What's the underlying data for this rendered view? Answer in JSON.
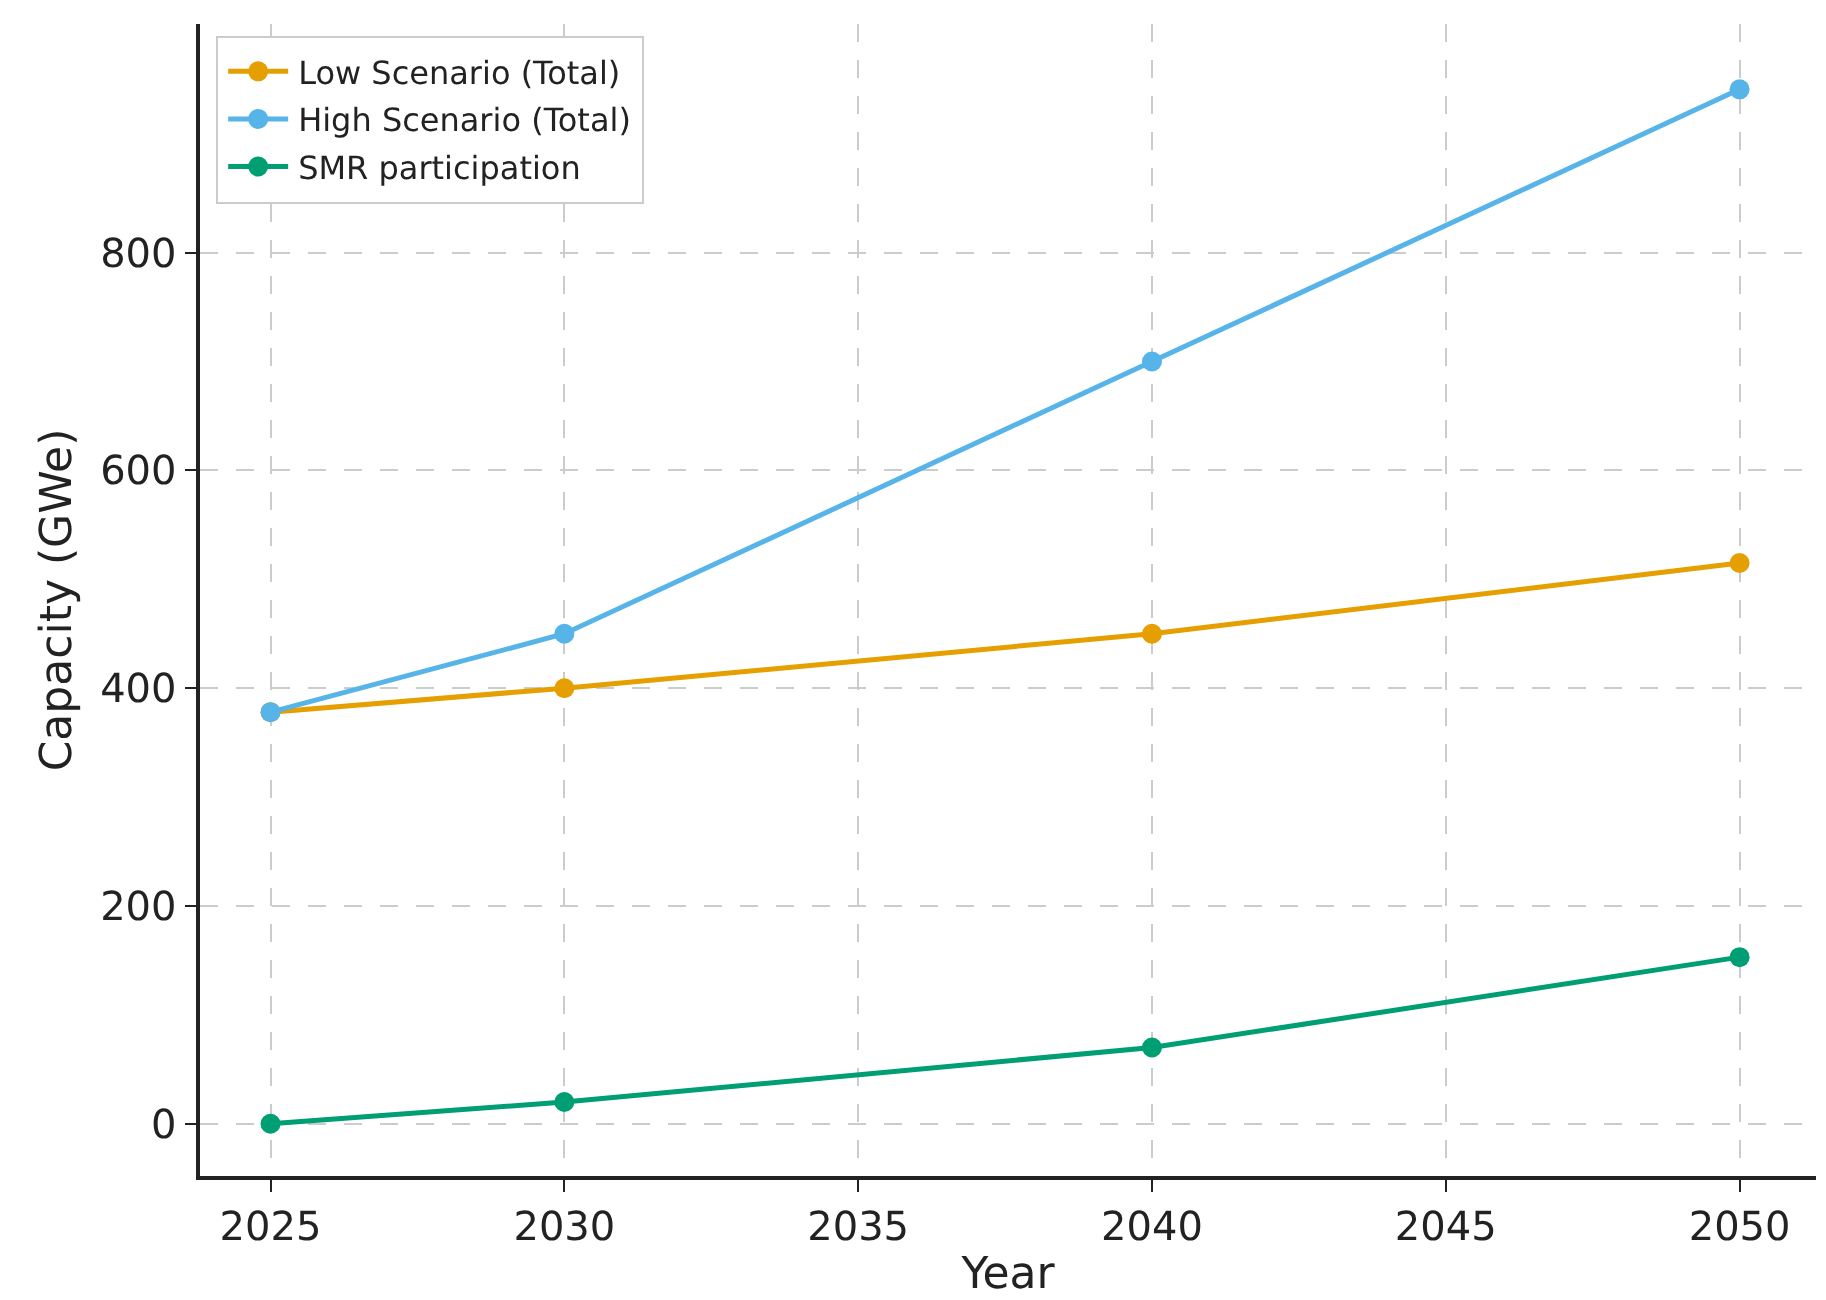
{
  "chart_data": {
    "type": "line",
    "xlabel": "Year",
    "ylabel": "Capacity (GWe)",
    "x": [
      2025,
      2030,
      2040,
      2050
    ],
    "series": [
      {
        "name": "Low Scenario (Total)",
        "color": "#e69f00",
        "values": [
          378,
          400,
          450,
          515
        ]
      },
      {
        "name": "High Scenario (Total)",
        "color": "#56b4e9",
        "values": [
          378,
          450,
          700,
          950
        ]
      },
      {
        "name": "SMR participation",
        "color": "#009e73",
        "values": [
          0,
          20,
          70,
          153
        ]
      }
    ],
    "xlim": [
      2023.8,
      2051.3
    ],
    "xticks": [
      2025,
      2030,
      2035,
      2040,
      2045,
      2050
    ],
    "ylim": [
      -48,
      1010
    ],
    "yticks": [
      0,
      200,
      400,
      600,
      800
    ],
    "grid": true,
    "legend": "top left",
    "marker": "circle",
    "line_style": "solid"
  }
}
